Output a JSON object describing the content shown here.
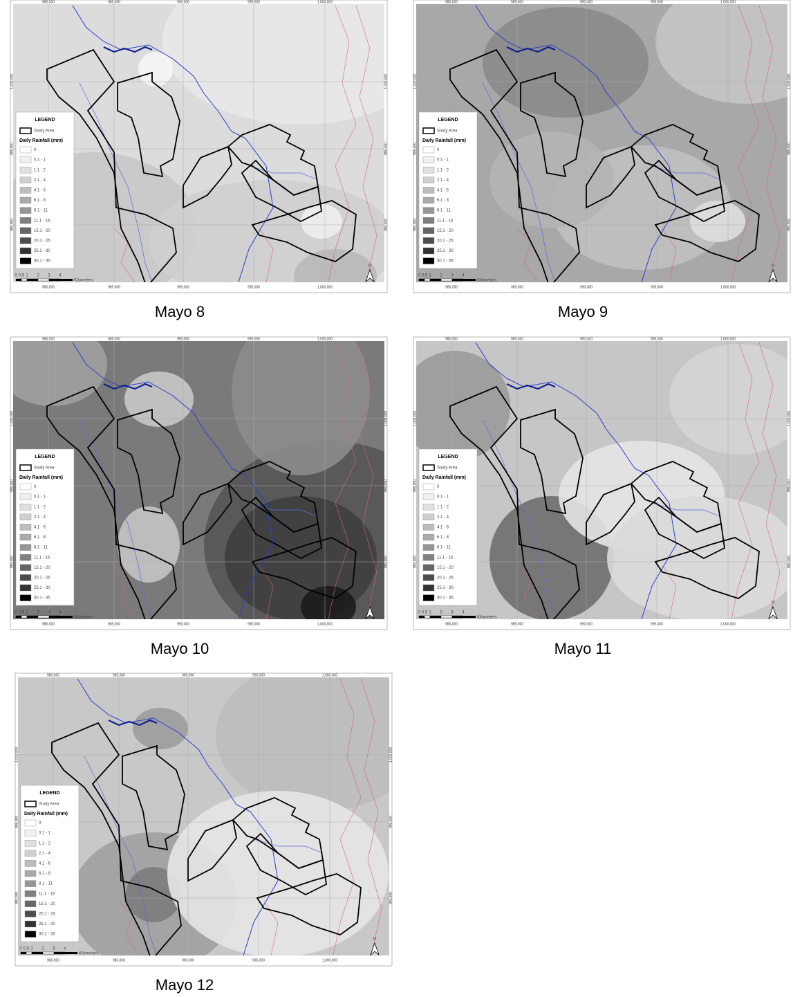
{
  "panels": [
    {
      "caption": "Mayo 8"
    },
    {
      "caption": "Mayo 9"
    },
    {
      "caption": "Mayo 10"
    },
    {
      "caption": "Mayo 11"
    },
    {
      "caption": "Mayo 12"
    }
  ],
  "legend": {
    "title": "LEGEND",
    "study_area": "Study Area",
    "rainfall_title": "Daily Rainfall (mm)",
    "classes": [
      {
        "label": "0",
        "color": "#ffffff"
      },
      {
        "label": "0.1 - 1",
        "color": "#f0f0f0"
      },
      {
        "label": "1.1 - 2",
        "color": "#e0e0e0"
      },
      {
        "label": "2.1 - 4",
        "color": "#cfcfcf"
      },
      {
        "label": "4.1 - 6",
        "color": "#bdbdbd"
      },
      {
        "label": "6.1 - 8",
        "color": "#aaaaaa"
      },
      {
        "label": "8.1 - 11",
        "color": "#969696"
      },
      {
        "label": "11.1 - 15",
        "color": "#808080"
      },
      {
        "label": "15.1 - 20",
        "color": "#666666"
      },
      {
        "label": "20.1 - 25",
        "color": "#4d4d4d"
      },
      {
        "label": "25.1 - 30",
        "color": "#333333"
      },
      {
        "label": "30.1 - 35",
        "color": "#000000"
      }
    ]
  },
  "scale_bar": {
    "labels": [
      "0",
      "0.5",
      "1",
      "2",
      "3",
      "4"
    ],
    "unit": "Kilometers"
  },
  "north": "N",
  "grid_labels": {
    "x": [
      "980,000",
      "985,000",
      "990,000",
      "995,000",
      "1,000,000"
    ],
    "y": [
      "1,000,000",
      "995,000",
      "990,000"
    ]
  }
}
